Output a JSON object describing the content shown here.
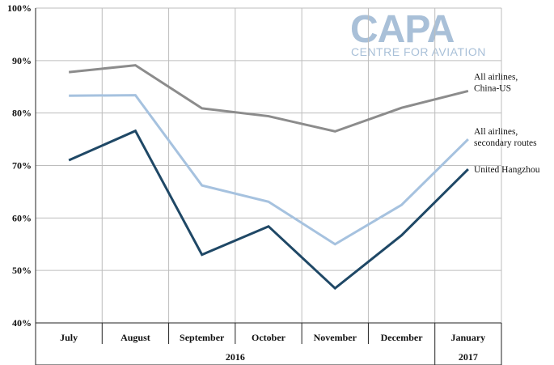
{
  "chart_data": {
    "type": "line",
    "categories": [
      "July",
      "August",
      "September",
      "October",
      "November",
      "December",
      "January"
    ],
    "category_groups": [
      {
        "label": "2016",
        "span": [
          0,
          5
        ]
      },
      {
        "label": "2017",
        "span": [
          6,
          6
        ]
      }
    ],
    "ylim": [
      40,
      100
    ],
    "ytick_labels": [
      "40%",
      "50%",
      "60%",
      "70%",
      "80%",
      "90%",
      "100%"
    ],
    "grid": true,
    "legend": "right, labels at line ends",
    "series": [
      {
        "name": "All airlines, China-US",
        "name_lines": [
          "All airlines,",
          "China-US"
        ],
        "color": "#8c8c8c",
        "values": [
          87.8,
          89.1,
          80.9,
          79.4,
          76.5,
          81.0,
          84.2
        ]
      },
      {
        "name": "All airlines, secondary routes",
        "name_lines": [
          "All airlines,",
          "secondary routes"
        ],
        "color": "#a6c2df",
        "values": [
          83.3,
          83.4,
          66.2,
          63.1,
          55.0,
          62.5,
          75.0
        ]
      },
      {
        "name": "United Hangzhou",
        "name_lines": [
          "United Hangzhou"
        ],
        "color": "#1f4866",
        "values": [
          71.0,
          76.6,
          53.0,
          58.4,
          46.6,
          56.7,
          69.3
        ]
      }
    ]
  },
  "watermark": {
    "brand": "CAPA",
    "tagline": "CENTRE FOR AVIATION",
    "color": "#a9c0d8"
  }
}
